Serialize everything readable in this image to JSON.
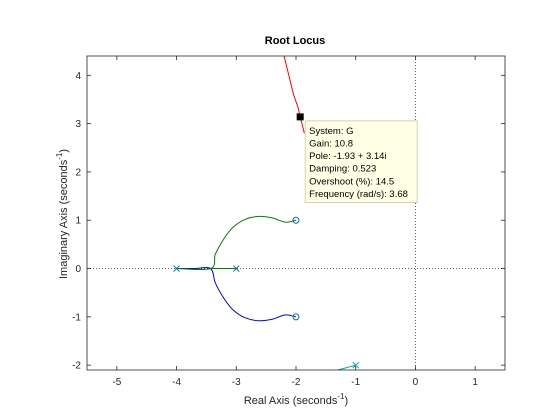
{
  "chart_data": {
    "type": "line",
    "title": "Root Locus",
    "xlabel": "Real Axis (seconds",
    "xlabel_sup": "-1",
    "xlabel_end": ")",
    "ylabel": "Imaginary Axis (seconds",
    "ylabel_sup": "-1",
    "ylabel_end": ")",
    "xlim": [
      -5.5,
      1.5
    ],
    "ylim": [
      -2.1,
      4.4
    ],
    "xticks": [
      "-5",
      "-4",
      "-3",
      "-2",
      "-1",
      "0",
      "1"
    ],
    "yticks": [
      "-2",
      "-1",
      "0",
      "1",
      "2",
      "3",
      "4"
    ],
    "grid": false,
    "colors": {
      "branch1": "#0000ff",
      "branch2": "#008000",
      "branch3": "#ff0000",
      "axes": "#262626",
      "zero_line": "#404040"
    },
    "poles": [
      {
        "x": -4,
        "y": 0
      },
      {
        "x": -3,
        "y": 0
      },
      {
        "x": -1,
        "y": -2
      }
    ],
    "zeros": [
      {
        "x": -2,
        "y": 1
      },
      {
        "x": -2,
        "y": -1
      }
    ],
    "series": [
      {
        "color": "#0000ff",
        "x": [
          -4.0,
          -3.7,
          -3.43,
          -3.35,
          -3.2,
          -3.05,
          -2.85,
          -2.62,
          -2.4,
          -2.18,
          -2.0
        ],
        "y": [
          0.0,
          0.0,
          0.0,
          -0.3,
          -0.63,
          -0.86,
          -1.02,
          -1.08,
          -1.05,
          -0.96,
          -1.0
        ]
      },
      {
        "color": "#0000ff",
        "x": [
          -3.0,
          -3.43
        ],
        "y": [
          0.0,
          0.0
        ]
      },
      {
        "color": "#008000",
        "x": [
          -4.0,
          -3.43,
          -3.35,
          -3.2,
          -3.05,
          -2.85,
          -2.62,
          -2.4,
          -2.18,
          -2.0
        ],
        "y": [
          0.0,
          0.0,
          0.3,
          0.63,
          0.86,
          1.02,
          1.08,
          1.05,
          0.96,
          1.0
        ]
      },
      {
        "color": "#008000",
        "x": [
          -3.0,
          -3.43
        ],
        "y": [
          0.0,
          0.0
        ]
      },
      {
        "color": "#ff0000",
        "x": [
          -2.2,
          -2.12,
          -2.04,
          -1.97,
          -1.93,
          -1.89,
          -1.86
        ],
        "y": [
          4.4,
          4.0,
          3.6,
          3.35,
          3.14,
          2.95,
          2.8
        ]
      },
      {
        "color": "#00aaaa",
        "x": [
          -1.0,
          -1.15,
          -1.3
        ],
        "y": [
          -2.0,
          -2.05,
          -2.1
        ]
      }
    ],
    "datatip": {
      "x": -1.93,
      "y": 3.14,
      "lines": [
        "System: G",
        "Gain: 10.8",
        "Pole: -1.93 + 3.14i",
        "Damping: 0.523",
        "Overshoot (%): 14.5",
        "Frequency (rad/s): 3.68"
      ]
    }
  }
}
